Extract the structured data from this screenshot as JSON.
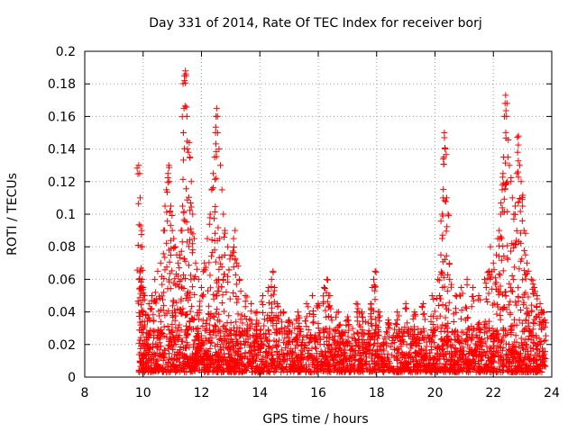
{
  "chart_data": {
    "type": "scatter",
    "title": "Day 331 of 2014, Rate Of TEC Index for receiver borj",
    "xlabel": "GPS time / hours",
    "ylabel": "ROTI / TECUs",
    "xlim": [
      8,
      24
    ],
    "ylim": [
      0,
      0.2
    ],
    "xticks": [
      "8",
      "10",
      "12",
      "14",
      "16",
      "18",
      "20",
      "22",
      "24"
    ],
    "yticks": [
      "0",
      "0.02",
      "0.04",
      "0.06",
      "0.08",
      "0.1",
      "0.12",
      "0.14",
      "0.16",
      "0.18",
      "0.2"
    ],
    "grid": true,
    "marker": "+",
    "series": [
      {
        "name": "ROTI",
        "color": "#ff0000",
        "points": [
          [
            9.85,
            0.13
          ],
          [
            9.88,
            0.125
          ],
          [
            9.9,
            0.11
          ],
          [
            9.92,
            0.08
          ],
          [
            9.95,
            0.09
          ],
          [
            9.9,
            0.065
          ],
          [
            9.97,
            0.06
          ],
          [
            10.0,
            0.055
          ],
          [
            10.05,
            0.05
          ],
          [
            10.2,
            0.045
          ],
          [
            10.3,
            0.05
          ],
          [
            10.4,
            0.06
          ],
          [
            10.5,
            0.065
          ],
          [
            10.6,
            0.07
          ],
          [
            10.7,
            0.09
          ],
          [
            10.75,
            0.105
          ],
          [
            10.8,
            0.115
          ],
          [
            10.85,
            0.125
          ],
          [
            10.88,
            0.13
          ],
          [
            10.9,
            0.12
          ],
          [
            10.95,
            0.105
          ],
          [
            11.0,
            0.09
          ],
          [
            11.05,
            0.085
          ],
          [
            11.1,
            0.08
          ],
          [
            11.15,
            0.075
          ],
          [
            11.2,
            0.07
          ],
          [
            11.25,
            0.075
          ],
          [
            11.3,
            0.09
          ],
          [
            11.35,
            0.105
          ],
          [
            11.38,
            0.15
          ],
          [
            11.4,
            0.165
          ],
          [
            11.42,
            0.182
          ],
          [
            11.45,
            0.188
          ],
          [
            11.47,
            0.185
          ],
          [
            11.5,
            0.16
          ],
          [
            11.52,
            0.14
          ],
          [
            11.55,
            0.138
          ],
          [
            11.58,
            0.144
          ],
          [
            11.6,
            0.135
          ],
          [
            11.65,
            0.12
          ],
          [
            11.7,
            0.1
          ],
          [
            11.75,
            0.085
          ],
          [
            11.8,
            0.07
          ],
          [
            11.9,
            0.06
          ],
          [
            12.0,
            0.055
          ],
          [
            12.1,
            0.07
          ],
          [
            12.2,
            0.085
          ],
          [
            12.3,
            0.1
          ],
          [
            12.35,
            0.115
          ],
          [
            12.4,
            0.125
          ],
          [
            12.45,
            0.135
          ],
          [
            12.48,
            0.15
          ],
          [
            12.5,
            0.16
          ],
          [
            12.52,
            0.165
          ],
          [
            12.55,
            0.15
          ],
          [
            12.6,
            0.14
          ],
          [
            12.65,
            0.13
          ],
          [
            12.7,
            0.115
          ],
          [
            12.75,
            0.1
          ],
          [
            12.8,
            0.09
          ],
          [
            12.9,
            0.08
          ],
          [
            13.0,
            0.075
          ],
          [
            13.1,
            0.085
          ],
          [
            13.15,
            0.09
          ],
          [
            13.2,
            0.07
          ],
          [
            13.3,
            0.06
          ],
          [
            13.5,
            0.05
          ],
          [
            13.7,
            0.045
          ],
          [
            13.9,
            0.04
          ],
          [
            14.1,
            0.05
          ],
          [
            14.3,
            0.055
          ],
          [
            14.4,
            0.06
          ],
          [
            14.45,
            0.065
          ],
          [
            14.5,
            0.055
          ],
          [
            14.6,
            0.045
          ],
          [
            14.8,
            0.04
          ],
          [
            15.0,
            0.035
          ],
          [
            15.3,
            0.04
          ],
          [
            15.6,
            0.045
          ],
          [
            15.8,
            0.05
          ],
          [
            16.0,
            0.045
          ],
          [
            16.2,
            0.055
          ],
          [
            16.3,
            0.06
          ],
          [
            16.4,
            0.05
          ],
          [
            16.7,
            0.04
          ],
          [
            17.0,
            0.035
          ],
          [
            17.3,
            0.045
          ],
          [
            17.5,
            0.04
          ],
          [
            17.8,
            0.045
          ],
          [
            17.85,
            0.055
          ],
          [
            17.9,
            0.06
          ],
          [
            17.95,
            0.065
          ],
          [
            18.1,
            0.04
          ],
          [
            18.4,
            0.035
          ],
          [
            18.7,
            0.04
          ],
          [
            19.0,
            0.045
          ],
          [
            19.3,
            0.04
          ],
          [
            19.6,
            0.045
          ],
          [
            19.9,
            0.05
          ],
          [
            20.1,
            0.06
          ],
          [
            20.2,
            0.075
          ],
          [
            20.25,
            0.1
          ],
          [
            20.28,
            0.11
          ],
          [
            20.3,
            0.135
          ],
          [
            20.32,
            0.15
          ],
          [
            20.35,
            0.14
          ],
          [
            20.4,
            0.11
          ],
          [
            20.45,
            0.1
          ],
          [
            20.5,
            0.06
          ],
          [
            20.7,
            0.05
          ],
          [
            20.9,
            0.055
          ],
          [
            21.1,
            0.06
          ],
          [
            21.3,
            0.055
          ],
          [
            21.5,
            0.05
          ],
          [
            21.7,
            0.06
          ],
          [
            21.85,
            0.065
          ],
          [
            21.9,
            0.08
          ],
          [
            22.0,
            0.07
          ],
          [
            22.1,
            0.075
          ],
          [
            22.15,
            0.085
          ],
          [
            22.2,
            0.09
          ],
          [
            22.25,
            0.1
          ],
          [
            22.3,
            0.115
          ],
          [
            22.33,
            0.125
          ],
          [
            22.35,
            0.135
          ],
          [
            22.38,
            0.16
          ],
          [
            22.4,
            0.168
          ],
          [
            22.42,
            0.173
          ],
          [
            22.45,
            0.16
          ],
          [
            22.5,
            0.135
          ],
          [
            22.55,
            0.13
          ],
          [
            22.6,
            0.12
          ],
          [
            22.65,
            0.11
          ],
          [
            22.7,
            0.1
          ],
          [
            22.75,
            0.105
          ],
          [
            22.8,
            0.125
          ],
          [
            22.83,
            0.138
          ],
          [
            22.86,
            0.148
          ],
          [
            22.9,
            0.13
          ],
          [
            22.95,
            0.12
          ],
          [
            23.0,
            0.105
          ],
          [
            23.05,
            0.09
          ],
          [
            23.1,
            0.075
          ],
          [
            23.15,
            0.07
          ],
          [
            23.2,
            0.065
          ],
          [
            23.3,
            0.06
          ],
          [
            23.4,
            0.055
          ],
          [
            23.5,
            0.05
          ],
          [
            23.6,
            0.045
          ],
          [
            23.7,
            0.04
          ],
          [
            23.75,
            0.035
          ]
        ]
      }
    ],
    "background_band": {
      "x_start": 9.85,
      "x_end": 23.8,
      "y_min": 0.003,
      "y_max": 0.03,
      "note": "dense cloud of low-value points across observation window"
    }
  }
}
